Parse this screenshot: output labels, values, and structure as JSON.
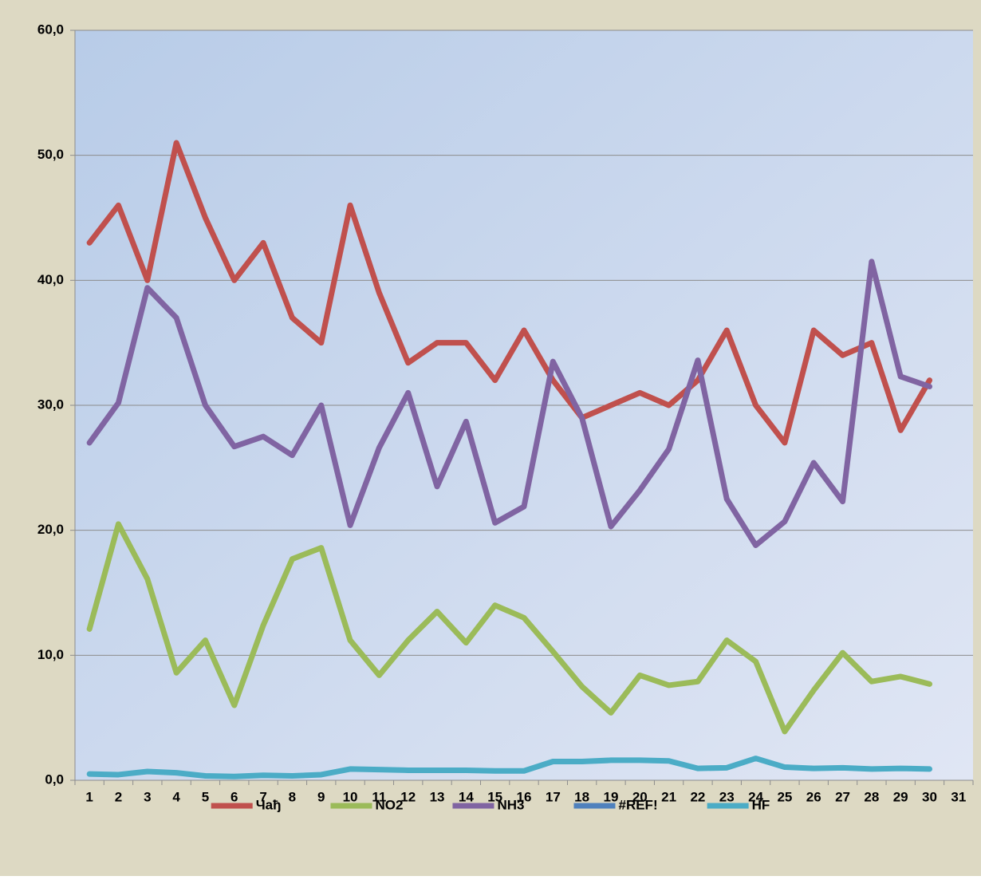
{
  "chart_data": {
    "type": "line",
    "categories": [
      "1",
      "2",
      "3",
      "4",
      "5",
      "6",
      "7",
      "8",
      "9",
      "10",
      "11",
      "12",
      "13",
      "14",
      "15",
      "16",
      "17",
      "18",
      "19",
      "20",
      "21",
      "22",
      "23",
      "24",
      "25",
      "26",
      "27",
      "28",
      "29",
      "30",
      "31"
    ],
    "series": [
      {
        "name": "Чађ",
        "color": "#c0504d",
        "values": [
          43,
          46,
          40,
          51,
          45,
          40,
          43,
          37,
          35,
          46,
          39,
          33.4,
          35,
          35,
          32,
          36,
          32,
          29,
          30,
          31,
          30,
          32,
          36,
          30,
          27,
          36,
          34,
          35,
          28,
          32,
          null
        ]
      },
      {
        "name": "NO2",
        "color": "#9bbb59",
        "values": [
          12.1,
          20.5,
          16.1,
          8.6,
          11.2,
          6,
          12.4,
          17.7,
          18.6,
          11.2,
          8.4,
          11.2,
          13.5,
          11,
          14,
          13,
          10.3,
          7.5,
          5.4,
          8.4,
          7.6,
          7.9,
          11.2,
          9.5,
          3.9,
          7.2,
          10.2,
          7.9,
          8.3,
          7.7,
          null
        ]
      },
      {
        "name": "NH3",
        "color": "#8064a2",
        "values": [
          27,
          30.2,
          39.4,
          37,
          30,
          26.7,
          27.5,
          26,
          30,
          20.4,
          26.6,
          31,
          23.5,
          28.7,
          20.6,
          21.9,
          33.5,
          29,
          20.3,
          23.2,
          26.5,
          33.6,
          22.5,
          18.8,
          20.7,
          25.4,
          22.3,
          41.5,
          32.3,
          31.5,
          null
        ]
      },
      {
        "name": "#REF!",
        "color": "#4f81bd",
        "values": [
          null,
          null,
          null,
          null,
          null,
          null,
          null,
          null,
          null,
          null,
          null,
          null,
          null,
          null,
          null,
          null,
          null,
          null,
          null,
          null,
          null,
          null,
          null,
          null,
          null,
          null,
          null,
          null,
          null,
          null,
          null
        ]
      },
      {
        "name": "HF",
        "color": "#4bacc6",
        "values": [
          0.5,
          0.45,
          0.7,
          0.6,
          0.35,
          0.3,
          0.4,
          0.35,
          0.45,
          0.9,
          0.85,
          0.8,
          0.8,
          0.8,
          0.75,
          0.75,
          1.5,
          1.5,
          1.6,
          1.6,
          1.55,
          0.95,
          1.0,
          1.75,
          1.05,
          0.95,
          1.0,
          0.9,
          0.95,
          0.9,
          null
        ]
      }
    ],
    "ylim": [
      0,
      60
    ],
    "yticks": [
      {
        "value": 0,
        "label": "0,0"
      },
      {
        "value": 10,
        "label": "10,0"
      },
      {
        "value": 20,
        "label": "20,0"
      },
      {
        "value": 30,
        "label": "30,0"
      },
      {
        "value": 40,
        "label": "40,0"
      },
      {
        "value": 50,
        "label": "50,0"
      },
      {
        "value": 60,
        "label": "60,0"
      }
    ],
    "grid": true,
    "legend": "bottom"
  }
}
